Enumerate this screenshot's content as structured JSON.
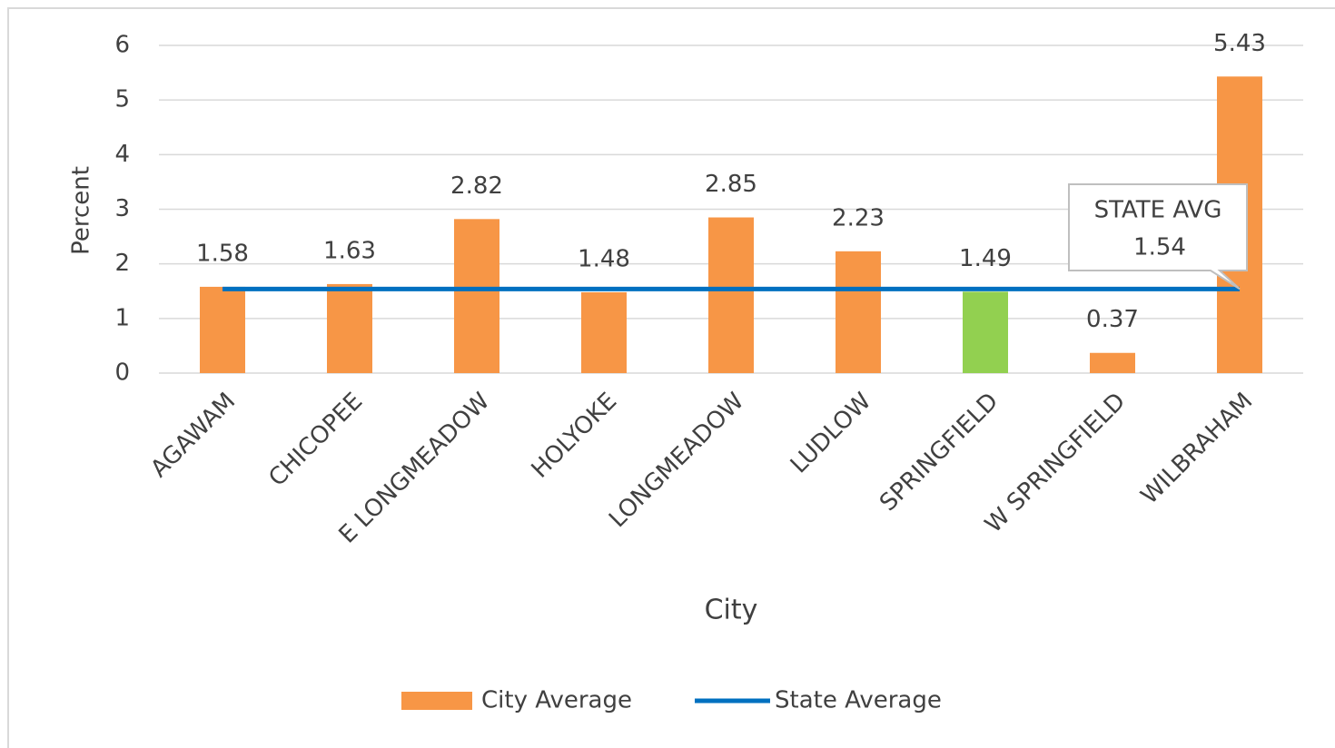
{
  "chart_data": {
    "type": "bar",
    "y_label": "Percent",
    "x_label": "City",
    "categories": [
      "AGAWAM",
      "CHICOPEE",
      "E LONGMEADOW",
      "HOLYOKE",
      "LONGMEADOW",
      "LUDLOW",
      "SPRINGFIELD",
      "W SPRINGFIELD",
      "WILBRAHAM"
    ],
    "series": [
      {
        "name": "City Average",
        "type": "bar",
        "color": "#f79646",
        "colors": [
          "#f79646",
          "#f79646",
          "#f79646",
          "#f79646",
          "#f79646",
          "#f79646",
          "#92d050",
          "#f79646",
          "#f79646"
        ],
        "values": [
          1.58,
          1.63,
          2.82,
          1.48,
          2.85,
          2.23,
          1.49,
          0.37,
          5.43
        ]
      },
      {
        "name": "State Average",
        "type": "line",
        "color": "#0070c0",
        "values": [
          1.54,
          1.54,
          1.54,
          1.54,
          1.54,
          1.54,
          1.54,
          1.54,
          1.54
        ]
      }
    ],
    "annotation": "STATE AVG",
    "ylim": [
      0,
      6
    ],
    "yticks": [
      0,
      1,
      2,
      3,
      4,
      5,
      6
    ],
    "grid": true,
    "legend": "bottom"
  }
}
